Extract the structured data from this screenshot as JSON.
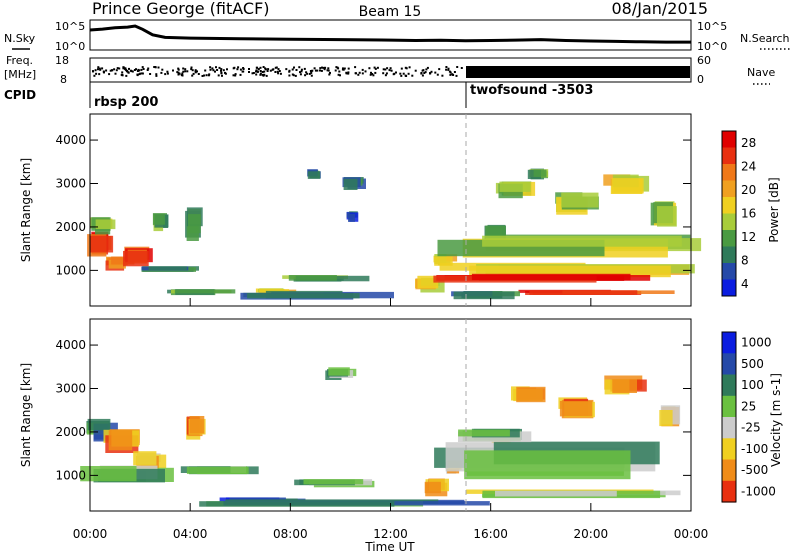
{
  "header": {
    "station": "Prince George (fitACF)",
    "beam": "Beam 15",
    "date": "08/Jan/2015"
  },
  "sky_panel": {
    "left_label": "N.Sky",
    "right_label": "N.Search",
    "y_ticks_left": [
      "10^5",
      "10^0"
    ],
    "y_ticks_right": [
      "10^5",
      "10^0"
    ],
    "trace": [
      [
        0,
        0.82
      ],
      [
        0.5,
        0.86
      ],
      [
        1.0,
        0.92
      ],
      [
        1.5,
        0.95
      ],
      [
        1.8,
        1.0
      ],
      [
        2.1,
        0.85
      ],
      [
        2.5,
        0.6
      ],
      [
        3,
        0.48
      ],
      [
        4,
        0.45
      ],
      [
        6,
        0.42
      ],
      [
        8,
        0.4
      ],
      [
        10,
        0.38
      ],
      [
        12,
        0.36
      ],
      [
        13,
        0.34
      ],
      [
        14,
        0.35
      ],
      [
        15,
        0.33
      ],
      [
        16,
        0.34
      ],
      [
        17,
        0.36
      ],
      [
        18,
        0.38
      ],
      [
        19,
        0.34
      ],
      [
        20,
        0.32
      ],
      [
        21,
        0.3
      ],
      [
        22,
        0.28
      ],
      [
        23,
        0.27
      ],
      [
        24,
        0.27
      ]
    ]
  },
  "freq_panel": {
    "left_label_1": "Freq.",
    "left_label_2": "[MHz]",
    "right_label": "Nave",
    "freq_ticks": [
      "18",
      "8"
    ],
    "nave_ticks": [
      "60",
      "0"
    ]
  },
  "cpid_panel": {
    "label": "CPID",
    "modes": [
      {
        "name": "rbsp 200",
        "start_hour": 0
      },
      {
        "name": "twofsound -3503",
        "start_hour": 15
      }
    ]
  },
  "chart_data": [
    {
      "type": "heatmap",
      "title": "",
      "xlabel": "",
      "ylabel": "Slant Range [km]",
      "xlim": [
        0,
        24
      ],
      "ylim": [
        180,
        4600
      ],
      "y_ticks": [
        "1000",
        "2000",
        "3000",
        "4000"
      ],
      "colorbar": {
        "label": "Power [dB]",
        "ticks": [
          "4",
          "8",
          "12",
          "16",
          "20",
          "24",
          "28"
        ],
        "colors": [
          "#0b1de0",
          "#2549a8",
          "#2f7a5a",
          "#4a9a42",
          "#a8cc3a",
          "#f0d020",
          "#f0a020",
          "#f07818",
          "#e83010",
          "#e00000"
        ]
      },
      "blobs": [
        {
          "x": 0.5,
          "y": 1500,
          "w": 1.0,
          "h": 600,
          "lvl": 0.85
        },
        {
          "x": 1.2,
          "y": 1100,
          "w": 1.0,
          "h": 350,
          "lvl": 0.75
        },
        {
          "x": 2.0,
          "y": 1300,
          "w": 1.2,
          "h": 400,
          "lvl": 0.9
        },
        {
          "x": 0.6,
          "y": 2000,
          "w": 0.9,
          "h": 400,
          "lvl": 0.45
        },
        {
          "x": 2.8,
          "y": 2050,
          "w": 0.6,
          "h": 450,
          "lvl": 0.35
        },
        {
          "x": 4.2,
          "y": 2000,
          "w": 0.8,
          "h": 700,
          "lvl": 0.35
        },
        {
          "x": 3.5,
          "y": 1000,
          "w": 2.5,
          "h": 150,
          "lvl": 0.2
        },
        {
          "x": 4.5,
          "y": 500,
          "w": 2.5,
          "h": 150,
          "lvl": 0.3
        },
        {
          "x": 7.5,
          "y": 500,
          "w": 1.5,
          "h": 150,
          "lvl": 0.55
        },
        {
          "x": 9.5,
          "y": 800,
          "w": 3.0,
          "h": 150,
          "lvl": 0.35
        },
        {
          "x": 9.0,
          "y": 3200,
          "w": 0.6,
          "h": 200,
          "lvl": 0.25
        },
        {
          "x": 10.6,
          "y": 3000,
          "w": 0.8,
          "h": 300,
          "lvl": 0.25
        },
        {
          "x": 10.5,
          "y": 2200,
          "w": 0.4,
          "h": 250,
          "lvl": 0.15
        },
        {
          "x": 9.0,
          "y": 400,
          "w": 5.0,
          "h": 200,
          "lvl": 0.25
        },
        {
          "x": 13.6,
          "y": 650,
          "w": 1.0,
          "h": 350,
          "lvl": 0.55
        },
        {
          "x": 14.2,
          "y": 1200,
          "w": 0.8,
          "h": 300,
          "lvl": 0.6
        },
        {
          "x": 16.2,
          "y": 1800,
          "w": 0.9,
          "h": 400,
          "lvl": 0.3
        },
        {
          "x": 17.0,
          "y": 2800,
          "w": 1.3,
          "h": 400,
          "lvl": 0.4
        },
        {
          "x": 18.0,
          "y": 3150,
          "w": 0.8,
          "h": 300,
          "lvl": 0.3
        },
        {
          "x": 19.5,
          "y": 2500,
          "w": 1.5,
          "h": 500,
          "lvl": 0.45
        },
        {
          "x": 21.5,
          "y": 2900,
          "w": 1.6,
          "h": 500,
          "lvl": 0.5
        },
        {
          "x": 23.0,
          "y": 2200,
          "w": 1.0,
          "h": 600,
          "lvl": 0.45
        },
        {
          "x": 19.5,
          "y": 1500,
          "w": 9.0,
          "h": 500,
          "lvl": 0.45
        },
        {
          "x": 19.5,
          "y": 1000,
          "w": 9.0,
          "h": 300,
          "lvl": 0.55
        },
        {
          "x": 19.5,
          "y": 800,
          "w": 9.0,
          "h": 200,
          "lvl": 0.95
        },
        {
          "x": 21.0,
          "y": 470,
          "w": 6.0,
          "h": 140,
          "lvl": 0.85
        },
        {
          "x": 16.0,
          "y": 400,
          "w": 2.5,
          "h": 200,
          "lvl": 0.25
        }
      ]
    },
    {
      "type": "heatmap",
      "title": "",
      "xlabel": "Time UT",
      "ylabel": "Slant Range [km]",
      "xlim": [
        0,
        24
      ],
      "ylim": [
        180,
        4600
      ],
      "x_ticks": [
        "00:00",
        "04:00",
        "08:00",
        "12:00",
        "16:00",
        "20:00",
        "00:00"
      ],
      "y_ticks": [
        "1000",
        "2000",
        "3000",
        "4000"
      ],
      "colorbar": {
        "label": "Velocity [m s-1]",
        "ticks": [
          "1000",
          "500",
          "100",
          "25",
          "-25",
          "-100",
          "-500",
          "-1000"
        ],
        "colors": [
          "#0b1de0",
          "#2549a8",
          "#2f7a5a",
          "#6ac040",
          "#cccccc",
          "#f0d020",
          "#f08c18",
          "#e83010"
        ]
      },
      "blobs": [
        {
          "x": 0.5,
          "y": 2000,
          "w": 1.0,
          "h": 500,
          "lvl": 0.3
        },
        {
          "x": 1.5,
          "y": 1700,
          "w": 1.5,
          "h": 600,
          "lvl": 0.8
        },
        {
          "x": 2.5,
          "y": 1300,
          "w": 1.2,
          "h": 400,
          "lvl": 0.7
        },
        {
          "x": 1.5,
          "y": 900,
          "w": 3.0,
          "h": 500,
          "lvl": 0.45
        },
        {
          "x": 4.3,
          "y": 2000,
          "w": 0.8,
          "h": 600,
          "lvl": 0.8
        },
        {
          "x": 5.5,
          "y": 1100,
          "w": 3.0,
          "h": 200,
          "lvl": 0.45
        },
        {
          "x": 7.0,
          "y": 400,
          "w": 3.0,
          "h": 150,
          "lvl": 0.2
        },
        {
          "x": 10.0,
          "y": 800,
          "w": 3.0,
          "h": 200,
          "lvl": 0.45
        },
        {
          "x": 10.0,
          "y": 3300,
          "w": 1.0,
          "h": 300,
          "lvl": 0.45
        },
        {
          "x": 14.0,
          "y": 700,
          "w": 1.0,
          "h": 350,
          "lvl": 0.8
        },
        {
          "x": 14.5,
          "y": 1150,
          "w": 0.6,
          "h": 300,
          "lvl": 0.75
        },
        {
          "x": 16.5,
          "y": 1800,
          "w": 1.0,
          "h": 400,
          "lvl": 0.75
        },
        {
          "x": 17.5,
          "y": 2800,
          "w": 1.2,
          "h": 400,
          "lvl": 0.8
        },
        {
          "x": 19.5,
          "y": 2500,
          "w": 1.5,
          "h": 500,
          "lvl": 0.8
        },
        {
          "x": 21.5,
          "y": 3000,
          "w": 1.6,
          "h": 500,
          "lvl": 0.85
        },
        {
          "x": 23.2,
          "y": 2300,
          "w": 0.8,
          "h": 500,
          "lvl": 0.75
        },
        {
          "x": 19.5,
          "y": 1200,
          "w": 9.0,
          "h": 900,
          "lvl": 0.45
        },
        {
          "x": 20.0,
          "y": 550,
          "w": 8.0,
          "h": 200,
          "lvl": 0.6
        },
        {
          "x": 10.0,
          "y": 350,
          "w": 12.0,
          "h": 150,
          "lvl": 0.33
        },
        {
          "x": 16.5,
          "y": 1900,
          "w": 3.0,
          "h": 300,
          "lvl": 0.45
        }
      ]
    }
  ]
}
